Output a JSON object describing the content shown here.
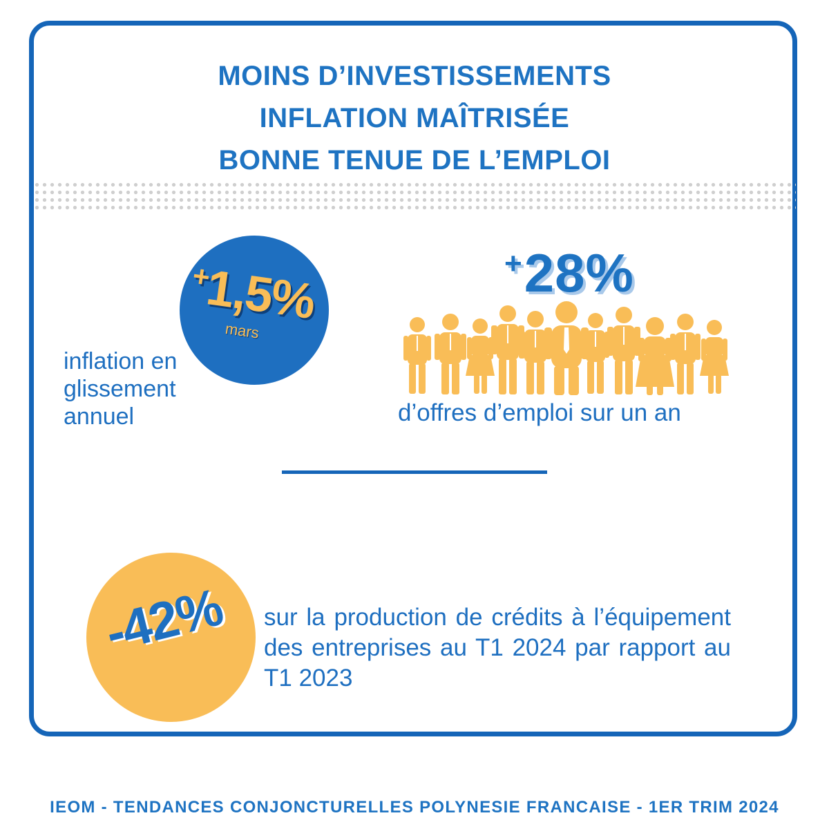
{
  "headline": {
    "line1": "MOINS D’INVESTISSEMENTS",
    "line2": "INFLATION MAÎTRISÉE",
    "line3": "BONNE TENUE DE L’EMPLOI"
  },
  "inflation": {
    "sign": "+",
    "value": "1,5%",
    "period": "mars",
    "description": "inflation en glissement annuel"
  },
  "emploi": {
    "sign": "+",
    "value": "28%",
    "description": "d’offres d’emploi sur un an",
    "icon": "people-group-icon"
  },
  "credits": {
    "value": "-42%",
    "description": "sur la production de crédits à l’équipement des entreprises au T1 2024 par rapport au T1 2023"
  },
  "footer": {
    "text": "IEOM - TENDANCES CONJONCTURELLES POLYNESIE FRANCAISE - 1ER TRIM 2024"
  },
  "colors": {
    "blue": "#1e6fc0",
    "orange": "#f9bd57"
  }
}
